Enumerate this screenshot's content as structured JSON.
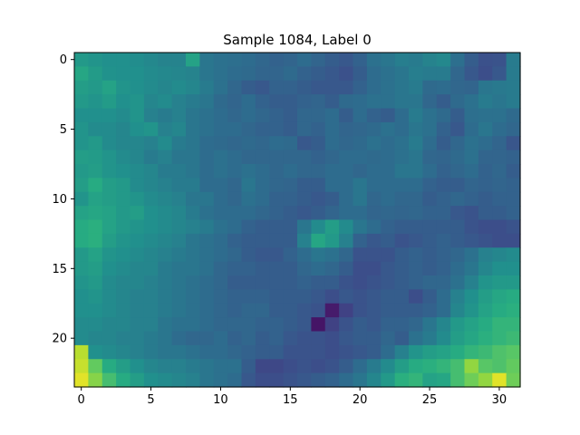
{
  "chart_data": {
    "type": "heatmap",
    "title": "Sample 1084, Label 0",
    "xlabel": "",
    "ylabel": "",
    "colormap": "viridis",
    "n_cols": 32,
    "n_rows": 24,
    "x_ticks": [
      0,
      5,
      10,
      15,
      20,
      25,
      30
    ],
    "y_ticks": [
      0,
      5,
      10,
      15,
      20
    ],
    "xlim": [
      -0.5,
      31.5
    ],
    "ylim": [
      23.5,
      -0.5
    ],
    "y_inverted": true,
    "grid": false,
    "value_range": [
      0,
      1
    ],
    "values": [
      [
        0.54,
        0.52,
        0.5,
        0.5,
        0.49,
        0.47,
        0.45,
        0.45,
        0.58,
        0.4,
        0.38,
        0.37,
        0.36,
        0.34,
        0.32,
        0.33,
        0.36,
        0.33,
        0.3,
        0.28,
        0.32,
        0.38,
        0.4,
        0.43,
        0.42,
        0.45,
        0.47,
        0.37,
        0.3,
        0.25,
        0.26,
        0.42
      ],
      [
        0.6,
        0.55,
        0.51,
        0.5,
        0.5,
        0.48,
        0.47,
        0.46,
        0.45,
        0.4,
        0.38,
        0.36,
        0.35,
        0.33,
        0.33,
        0.35,
        0.32,
        0.3,
        0.28,
        0.25,
        0.3,
        0.36,
        0.38,
        0.4,
        0.43,
        0.42,
        0.42,
        0.34,
        0.28,
        0.24,
        0.28,
        0.42
      ],
      [
        0.56,
        0.54,
        0.58,
        0.52,
        0.5,
        0.48,
        0.46,
        0.48,
        0.46,
        0.42,
        0.38,
        0.34,
        0.3,
        0.28,
        0.32,
        0.32,
        0.3,
        0.28,
        0.28,
        0.28,
        0.32,
        0.36,
        0.38,
        0.4,
        0.42,
        0.35,
        0.36,
        0.34,
        0.33,
        0.4,
        0.41,
        0.42
      ],
      [
        0.54,
        0.52,
        0.55,
        0.5,
        0.52,
        0.46,
        0.48,
        0.44,
        0.42,
        0.4,
        0.35,
        0.33,
        0.36,
        0.32,
        0.3,
        0.3,
        0.32,
        0.33,
        0.3,
        0.35,
        0.36,
        0.38,
        0.38,
        0.4,
        0.4,
        0.34,
        0.3,
        0.35,
        0.38,
        0.42,
        0.4,
        0.42
      ],
      [
        0.5,
        0.5,
        0.5,
        0.48,
        0.52,
        0.44,
        0.42,
        0.44,
        0.4,
        0.38,
        0.36,
        0.34,
        0.36,
        0.34,
        0.32,
        0.3,
        0.34,
        0.34,
        0.36,
        0.3,
        0.36,
        0.32,
        0.3,
        0.36,
        0.42,
        0.38,
        0.35,
        0.3,
        0.37,
        0.38,
        0.38,
        0.35
      ],
      [
        0.52,
        0.48,
        0.48,
        0.46,
        0.5,
        0.52,
        0.44,
        0.46,
        0.4,
        0.38,
        0.36,
        0.36,
        0.34,
        0.32,
        0.32,
        0.3,
        0.34,
        0.32,
        0.36,
        0.33,
        0.34,
        0.35,
        0.38,
        0.36,
        0.4,
        0.38,
        0.32,
        0.28,
        0.36,
        0.4,
        0.36,
        0.34
      ],
      [
        0.52,
        0.54,
        0.48,
        0.46,
        0.46,
        0.44,
        0.48,
        0.42,
        0.4,
        0.36,
        0.35,
        0.34,
        0.35,
        0.34,
        0.36,
        0.35,
        0.28,
        0.3,
        0.36,
        0.34,
        0.35,
        0.38,
        0.36,
        0.38,
        0.42,
        0.36,
        0.3,
        0.34,
        0.38,
        0.36,
        0.33,
        0.27
      ],
      [
        0.56,
        0.55,
        0.52,
        0.48,
        0.46,
        0.42,
        0.44,
        0.4,
        0.4,
        0.36,
        0.38,
        0.36,
        0.34,
        0.34,
        0.34,
        0.34,
        0.34,
        0.32,
        0.34,
        0.36,
        0.36,
        0.35,
        0.36,
        0.38,
        0.4,
        0.34,
        0.33,
        0.35,
        0.38,
        0.33,
        0.33,
        0.32
      ],
      [
        0.54,
        0.56,
        0.52,
        0.5,
        0.48,
        0.46,
        0.42,
        0.42,
        0.4,
        0.36,
        0.38,
        0.36,
        0.38,
        0.36,
        0.34,
        0.36,
        0.34,
        0.34,
        0.36,
        0.36,
        0.34,
        0.36,
        0.36,
        0.4,
        0.4,
        0.36,
        0.32,
        0.34,
        0.36,
        0.32,
        0.34,
        0.3
      ],
      [
        0.56,
        0.62,
        0.56,
        0.54,
        0.48,
        0.46,
        0.44,
        0.42,
        0.42,
        0.36,
        0.36,
        0.34,
        0.4,
        0.36,
        0.34,
        0.33,
        0.3,
        0.3,
        0.36,
        0.36,
        0.4,
        0.36,
        0.36,
        0.36,
        0.36,
        0.32,
        0.3,
        0.3,
        0.33,
        0.32,
        0.33,
        0.32
      ],
      [
        0.52,
        0.58,
        0.56,
        0.54,
        0.52,
        0.48,
        0.46,
        0.44,
        0.4,
        0.4,
        0.36,
        0.34,
        0.38,
        0.36,
        0.32,
        0.32,
        0.3,
        0.28,
        0.3,
        0.36,
        0.4,
        0.34,
        0.36,
        0.34,
        0.34,
        0.3,
        0.32,
        0.34,
        0.32,
        0.3,
        0.32,
        0.32
      ],
      [
        0.58,
        0.6,
        0.58,
        0.54,
        0.56,
        0.5,
        0.48,
        0.46,
        0.42,
        0.38,
        0.36,
        0.36,
        0.36,
        0.34,
        0.32,
        0.3,
        0.28,
        0.3,
        0.33,
        0.36,
        0.36,
        0.33,
        0.34,
        0.33,
        0.34,
        0.32,
        0.32,
        0.28,
        0.26,
        0.3,
        0.3,
        0.32
      ],
      [
        0.62,
        0.64,
        0.58,
        0.54,
        0.52,
        0.5,
        0.48,
        0.46,
        0.44,
        0.42,
        0.38,
        0.36,
        0.32,
        0.3,
        0.3,
        0.3,
        0.4,
        0.48,
        0.56,
        0.48,
        0.4,
        0.36,
        0.32,
        0.3,
        0.3,
        0.3,
        0.3,
        0.3,
        0.26,
        0.24,
        0.24,
        0.26
      ],
      [
        0.62,
        0.64,
        0.56,
        0.52,
        0.5,
        0.48,
        0.46,
        0.44,
        0.4,
        0.38,
        0.36,
        0.32,
        0.3,
        0.3,
        0.3,
        0.3,
        0.44,
        0.6,
        0.54,
        0.44,
        0.32,
        0.28,
        0.3,
        0.26,
        0.28,
        0.3,
        0.32,
        0.3,
        0.28,
        0.26,
        0.24,
        0.24
      ],
      [
        0.54,
        0.58,
        0.52,
        0.5,
        0.48,
        0.46,
        0.44,
        0.42,
        0.4,
        0.38,
        0.36,
        0.34,
        0.3,
        0.28,
        0.28,
        0.32,
        0.36,
        0.4,
        0.38,
        0.34,
        0.26,
        0.26,
        0.26,
        0.3,
        0.32,
        0.3,
        0.32,
        0.34,
        0.38,
        0.44,
        0.46,
        0.48
      ],
      [
        0.54,
        0.56,
        0.5,
        0.48,
        0.46,
        0.46,
        0.42,
        0.4,
        0.4,
        0.38,
        0.34,
        0.32,
        0.32,
        0.3,
        0.3,
        0.3,
        0.34,
        0.36,
        0.34,
        0.3,
        0.24,
        0.24,
        0.28,
        0.3,
        0.32,
        0.3,
        0.32,
        0.36,
        0.4,
        0.46,
        0.5,
        0.5
      ],
      [
        0.52,
        0.54,
        0.48,
        0.46,
        0.46,
        0.44,
        0.42,
        0.4,
        0.38,
        0.36,
        0.34,
        0.3,
        0.3,
        0.3,
        0.3,
        0.3,
        0.32,
        0.3,
        0.3,
        0.26,
        0.24,
        0.26,
        0.28,
        0.3,
        0.32,
        0.34,
        0.34,
        0.38,
        0.44,
        0.52,
        0.54,
        0.54
      ],
      [
        0.5,
        0.52,
        0.48,
        0.46,
        0.44,
        0.44,
        0.42,
        0.4,
        0.38,
        0.36,
        0.34,
        0.32,
        0.32,
        0.32,
        0.3,
        0.3,
        0.3,
        0.28,
        0.24,
        0.28,
        0.26,
        0.28,
        0.3,
        0.3,
        0.24,
        0.3,
        0.36,
        0.44,
        0.5,
        0.56,
        0.6,
        0.62
      ],
      [
        0.5,
        0.5,
        0.48,
        0.46,
        0.44,
        0.44,
        0.42,
        0.4,
        0.38,
        0.36,
        0.34,
        0.32,
        0.34,
        0.34,
        0.3,
        0.3,
        0.28,
        0.26,
        0.08,
        0.2,
        0.26,
        0.28,
        0.3,
        0.3,
        0.3,
        0.32,
        0.36,
        0.46,
        0.52,
        0.58,
        0.62,
        0.64
      ],
      [
        0.48,
        0.48,
        0.46,
        0.46,
        0.44,
        0.44,
        0.4,
        0.38,
        0.38,
        0.36,
        0.34,
        0.34,
        0.34,
        0.32,
        0.32,
        0.3,
        0.28,
        0.06,
        0.2,
        0.26,
        0.3,
        0.28,
        0.32,
        0.32,
        0.34,
        0.4,
        0.46,
        0.54,
        0.58,
        0.62,
        0.66,
        0.66
      ],
      [
        0.48,
        0.46,
        0.46,
        0.44,
        0.44,
        0.42,
        0.4,
        0.36,
        0.34,
        0.34,
        0.36,
        0.32,
        0.34,
        0.3,
        0.32,
        0.28,
        0.26,
        0.26,
        0.24,
        0.28,
        0.3,
        0.3,
        0.34,
        0.3,
        0.38,
        0.42,
        0.48,
        0.56,
        0.6,
        0.64,
        0.66,
        0.68
      ],
      [
        0.9,
        0.5,
        0.48,
        0.46,
        0.44,
        0.42,
        0.4,
        0.4,
        0.38,
        0.36,
        0.36,
        0.34,
        0.32,
        0.3,
        0.3,
        0.26,
        0.26,
        0.26,
        0.24,
        0.26,
        0.28,
        0.3,
        0.36,
        0.44,
        0.52,
        0.56,
        0.58,
        0.62,
        0.66,
        0.68,
        0.72,
        0.74
      ],
      [
        0.92,
        0.76,
        0.62,
        0.56,
        0.5,
        0.46,
        0.44,
        0.44,
        0.42,
        0.4,
        0.38,
        0.38,
        0.3,
        0.22,
        0.22,
        0.24,
        0.26,
        0.24,
        0.26,
        0.3,
        0.36,
        0.42,
        0.48,
        0.56,
        0.62,
        0.64,
        0.66,
        0.7,
        0.84,
        0.74,
        0.72,
        0.76
      ],
      [
        0.96,
        0.82,
        0.7,
        0.62,
        0.56,
        0.5,
        0.48,
        0.46,
        0.44,
        0.4,
        0.38,
        0.36,
        0.28,
        0.24,
        0.24,
        0.26,
        0.28,
        0.3,
        0.32,
        0.36,
        0.4,
        0.46,
        0.54,
        0.64,
        0.66,
        0.58,
        0.6,
        0.7,
        0.78,
        0.84,
        0.96,
        0.78
      ]
    ]
  }
}
